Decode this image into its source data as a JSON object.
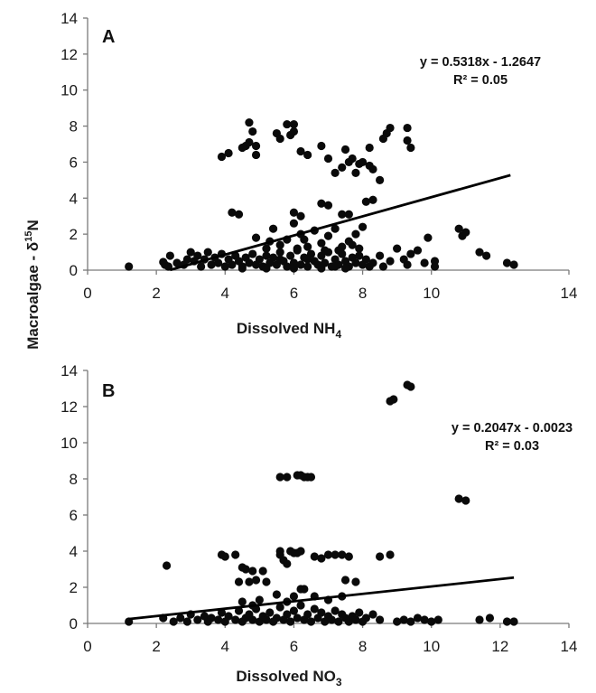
{
  "ylabel": "Macroalgae - δ",
  "ylabel_sup": "15",
  "ylabel_tail": "N",
  "chart_data": [
    {
      "type": "scatter",
      "panel_label": "A",
      "xlabel": "Dissolved NH",
      "xlabel_sub": "4",
      "xlim": [
        0,
        14
      ],
      "ylim": [
        0,
        14
      ],
      "xticks": [
        "0",
        "2",
        "4",
        "6",
        "8",
        "10",
        "14"
      ],
      "yticks": [
        "0",
        "2",
        "4",
        "6",
        "8",
        "10",
        "12",
        "14"
      ],
      "trendline": {
        "equation": "y = 0.5318x - 1.2647",
        "r2": "R² = 0.05",
        "slope": 0.5318,
        "intercept": -1.2647,
        "x_range": [
          2.4,
          12.3
        ]
      },
      "points": [
        [
          1.2,
          0.2
        ],
        [
          2.2,
          0.45
        ],
        [
          2.25,
          0.3
        ],
        [
          2.35,
          0.2
        ],
        [
          2.4,
          0.8
        ],
        [
          2.6,
          0.4
        ],
        [
          2.8,
          0.3
        ],
        [
          2.9,
          0.6
        ],
        [
          3.0,
          1.0
        ],
        [
          3.1,
          0.5
        ],
        [
          3.2,
          0.8
        ],
        [
          3.3,
          0.2
        ],
        [
          3.4,
          0.6
        ],
        [
          3.5,
          1.0
        ],
        [
          3.6,
          0.3
        ],
        [
          3.7,
          0.7
        ],
        [
          3.8,
          0.4
        ],
        [
          3.9,
          0.9
        ],
        [
          4.0,
          0.2
        ],
        [
          4.1,
          0.6
        ],
        [
          4.2,
          0.3
        ],
        [
          4.3,
          0.8
        ],
        [
          4.4,
          0.5
        ],
        [
          4.5,
          0.2
        ],
        [
          4.6,
          0.7
        ],
        [
          4.7,
          0.4
        ],
        [
          4.8,
          0.9
        ],
        [
          4.9,
          0.3
        ],
        [
          5.0,
          0.6
        ],
        [
          5.1,
          0.2
        ],
        [
          5.2,
          0.8
        ],
        [
          5.3,
          0.4
        ],
        [
          5.4,
          0.7
        ],
        [
          5.5,
          0.3
        ],
        [
          5.6,
          1.0
        ],
        [
          5.7,
          0.5
        ],
        [
          5.8,
          0.2
        ],
        [
          5.9,
          0.8
        ],
        [
          6.0,
          0.4
        ],
        [
          6.1,
          1.1
        ],
        [
          6.2,
          0.3
        ],
        [
          6.3,
          0.7
        ],
        [
          6.4,
          0.2
        ],
        [
          6.5,
          0.9
        ],
        [
          6.6,
          0.5
        ],
        [
          6.7,
          0.3
        ],
        [
          6.8,
          0.8
        ],
        [
          6.9,
          0.4
        ],
        [
          7.0,
          1.0
        ],
        [
          7.1,
          0.2
        ],
        [
          7.2,
          0.6
        ],
        [
          7.3,
          0.3
        ],
        [
          7.4,
          0.9
        ],
        [
          7.5,
          0.5
        ],
        [
          7.6,
          0.2
        ],
        [
          7.7,
          0.7
        ],
        [
          7.8,
          0.4
        ],
        [
          7.9,
          0.8
        ],
        [
          8.0,
          0.3
        ],
        [
          8.1,
          0.6
        ],
        [
          8.2,
          0.2
        ],
        [
          5.2,
          0.1
        ],
        [
          6.0,
          0.1
        ],
        [
          6.8,
          0.1
        ],
        [
          7.5,
          0.1
        ],
        [
          4.5,
          0.1
        ],
        [
          5.6,
          0.6
        ],
        [
          6.4,
          0.6
        ],
        [
          7.2,
          0.2
        ],
        [
          4.9,
          1.8
        ],
        [
          5.2,
          1.2
        ],
        [
          5.4,
          2.3
        ],
        [
          5.6,
          1.4
        ],
        [
          5.8,
          1.7
        ],
        [
          6.0,
          2.6
        ],
        [
          6.1,
          1.2
        ],
        [
          6.2,
          2.0
        ],
        [
          6.4,
          1.3
        ],
        [
          6.6,
          2.2
        ],
        [
          6.8,
          1.5
        ],
        [
          7.0,
          1.9
        ],
        [
          7.2,
          2.3
        ],
        [
          7.4,
          1.3
        ],
        [
          7.6,
          1.6
        ],
        [
          7.8,
          2.0
        ],
        [
          7.9,
          1.2
        ],
        [
          8.0,
          2.4
        ],
        [
          5.3,
          1.6
        ],
        [
          6.3,
          1.7
        ],
        [
          6.9,
          1.1
        ],
        [
          7.3,
          1.1
        ],
        [
          7.7,
          1.4
        ],
        [
          4.2,
          3.2
        ],
        [
          4.4,
          3.1
        ],
        [
          6.0,
          3.2
        ],
        [
          6.2,
          3.0
        ],
        [
          6.8,
          3.7
        ],
        [
          7.0,
          3.6
        ],
        [
          7.4,
          3.1
        ],
        [
          7.6,
          3.1
        ],
        [
          8.1,
          3.8
        ],
        [
          8.3,
          3.9
        ],
        [
          3.9,
          6.3
        ],
        [
          4.1,
          6.5
        ],
        [
          4.5,
          6.8
        ],
        [
          4.6,
          6.9
        ],
        [
          4.7,
          7.1
        ],
        [
          4.7,
          8.2
        ],
        [
          4.8,
          7.7
        ],
        [
          4.9,
          6.9
        ],
        [
          4.9,
          6.4
        ],
        [
          5.5,
          7.6
        ],
        [
          5.6,
          7.3
        ],
        [
          5.8,
          8.1
        ],
        [
          5.9,
          7.5
        ],
        [
          6.0,
          8.1
        ],
        [
          6.0,
          7.7
        ],
        [
          6.2,
          6.6
        ],
        [
          6.4,
          6.4
        ],
        [
          6.8,
          6.9
        ],
        [
          7.0,
          6.2
        ],
        [
          7.2,
          5.4
        ],
        [
          7.4,
          5.7
        ],
        [
          7.5,
          6.7
        ],
        [
          7.6,
          6.0
        ],
        [
          7.7,
          6.2
        ],
        [
          7.8,
          5.4
        ],
        [
          7.9,
          5.9
        ],
        [
          8.0,
          6.0
        ],
        [
          8.2,
          5.8
        ],
        [
          8.2,
          6.8
        ],
        [
          8.3,
          5.6
        ],
        [
          8.5,
          5.0
        ],
        [
          8.6,
          7.3
        ],
        [
          8.7,
          7.6
        ],
        [
          8.8,
          7.9
        ],
        [
          9.3,
          7.9
        ],
        [
          9.3,
          7.2
        ],
        [
          9.4,
          6.8
        ],
        [
          8.3,
          0.4
        ],
        [
          8.5,
          0.8
        ],
        [
          8.6,
          0.2
        ],
        [
          8.8,
          0.5
        ],
        [
          9.0,
          1.2
        ],
        [
          9.2,
          0.6
        ],
        [
          9.3,
          0.3
        ],
        [
          9.4,
          0.9
        ],
        [
          9.6,
          1.1
        ],
        [
          9.8,
          0.4
        ],
        [
          9.9,
          1.8
        ],
        [
          10.1,
          0.5
        ],
        [
          10.1,
          0.2
        ],
        [
          10.8,
          2.3
        ],
        [
          10.9,
          1.9
        ],
        [
          11.0,
          2.1
        ],
        [
          11.4,
          1.0
        ],
        [
          11.6,
          0.8
        ],
        [
          12.2,
          0.4
        ],
        [
          12.4,
          0.3
        ]
      ]
    },
    {
      "type": "scatter",
      "panel_label": "B",
      "xlabel": "Dissolved NO",
      "xlabel_sub": "3",
      "xlim": [
        0,
        14
      ],
      "ylim": [
        0,
        14
      ],
      "xticks": [
        "0",
        "2",
        "4",
        "6",
        "8",
        "10",
        "12",
        "14"
      ],
      "yticks": [
        "0",
        "2",
        "4",
        "6",
        "8",
        "10",
        "12",
        "14"
      ],
      "trendline": {
        "equation": "y = 0.2047x - 0.0023",
        "r2": "R² = 0.03",
        "slope": 0.2047,
        "intercept": -0.0023,
        "x_range": [
          1.2,
          12.4
        ]
      },
      "points": [
        [
          1.2,
          0.1
        ],
        [
          2.2,
          0.3
        ],
        [
          2.3,
          3.2
        ],
        [
          2.5,
          0.1
        ],
        [
          2.7,
          0.3
        ],
        [
          2.9,
          0.1
        ],
        [
          3.0,
          0.5
        ],
        [
          3.2,
          0.2
        ],
        [
          3.4,
          0.4
        ],
        [
          3.5,
          0.1
        ],
        [
          3.6,
          0.3
        ],
        [
          3.8,
          0.2
        ],
        [
          3.9,
          0.6
        ],
        [
          4.0,
          0.1
        ],
        [
          4.1,
          0.4
        ],
        [
          4.3,
          0.2
        ],
        [
          4.4,
          0.7
        ],
        [
          4.5,
          0.1
        ],
        [
          4.6,
          0.3
        ],
        [
          4.7,
          0.5
        ],
        [
          4.8,
          0.2
        ],
        [
          4.9,
          0.8
        ],
        [
          5.0,
          0.1
        ],
        [
          5.1,
          0.4
        ],
        [
          5.2,
          0.2
        ],
        [
          5.3,
          0.6
        ],
        [
          5.4,
          0.1
        ],
        [
          5.5,
          0.3
        ],
        [
          5.6,
          0.9
        ],
        [
          5.7,
          0.2
        ],
        [
          5.8,
          0.5
        ],
        [
          5.9,
          0.1
        ],
        [
          6.0,
          0.7
        ],
        [
          6.1,
          0.3
        ],
        [
          6.2,
          1.0
        ],
        [
          6.3,
          0.2
        ],
        [
          6.4,
          0.5
        ],
        [
          6.5,
          0.1
        ],
        [
          6.6,
          0.8
        ],
        [
          6.7,
          0.3
        ],
        [
          6.8,
          0.6
        ],
        [
          6.9,
          0.1
        ],
        [
          7.0,
          0.4
        ],
        [
          7.1,
          0.2
        ],
        [
          7.2,
          0.7
        ],
        [
          7.3,
          0.1
        ],
        [
          7.4,
          0.5
        ],
        [
          7.5,
          0.3
        ],
        [
          7.6,
          0.1
        ],
        [
          7.7,
          0.4
        ],
        [
          7.8,
          0.2
        ],
        [
          7.9,
          0.6
        ],
        [
          8.0,
          0.1
        ],
        [
          8.1,
          0.3
        ],
        [
          8.3,
          0.5
        ],
        [
          8.5,
          0.2
        ],
        [
          9.0,
          0.1
        ],
        [
          9.2,
          0.2
        ],
        [
          9.4,
          0.1
        ],
        [
          9.6,
          0.3
        ],
        [
          9.8,
          0.2
        ],
        [
          10.0,
          0.1
        ],
        [
          10.2,
          0.2
        ],
        [
          11.4,
          0.2
        ],
        [
          11.7,
          0.3
        ],
        [
          12.2,
          0.1
        ],
        [
          12.4,
          0.1
        ],
        [
          4.5,
          1.2
        ],
        [
          4.8,
          1.0
        ],
        [
          5.0,
          1.3
        ],
        [
          5.5,
          1.6
        ],
        [
          5.8,
          1.2
        ],
        [
          6.0,
          1.5
        ],
        [
          6.2,
          1.9
        ],
        [
          6.3,
          1.9
        ],
        [
          6.6,
          1.5
        ],
        [
          7.0,
          1.3
        ],
        [
          7.4,
          1.5
        ],
        [
          7.8,
          2.3
        ],
        [
          7.5,
          2.4
        ],
        [
          4.4,
          2.3
        ],
        [
          4.7,
          2.3
        ],
        [
          4.9,
          2.4
        ],
        [
          5.2,
          2.3
        ],
        [
          3.9,
          3.8
        ],
        [
          4.0,
          3.7
        ],
        [
          4.3,
          3.8
        ],
        [
          4.5,
          3.1
        ],
        [
          4.6,
          3.0
        ],
        [
          4.8,
          2.9
        ],
        [
          5.1,
          2.9
        ],
        [
          5.6,
          3.8
        ],
        [
          5.6,
          4.0
        ],
        [
          5.7,
          3.5
        ],
        [
          5.8,
          3.3
        ],
        [
          5.9,
          4.0
        ],
        [
          6.0,
          3.9
        ],
        [
          6.1,
          3.9
        ],
        [
          6.2,
          4.0
        ],
        [
          6.6,
          3.7
        ],
        [
          6.8,
          3.6
        ],
        [
          7.0,
          3.8
        ],
        [
          7.2,
          3.8
        ],
        [
          7.4,
          3.8
        ],
        [
          7.6,
          3.7
        ],
        [
          8.5,
          3.7
        ],
        [
          8.8,
          3.8
        ],
        [
          5.6,
          8.1
        ],
        [
          5.8,
          8.1
        ],
        [
          6.1,
          8.2
        ],
        [
          6.2,
          8.2
        ],
        [
          6.3,
          8.1
        ],
        [
          6.4,
          8.1
        ],
        [
          6.5,
          8.1
        ],
        [
          8.8,
          12.3
        ],
        [
          8.9,
          12.4
        ],
        [
          9.3,
          13.2
        ],
        [
          9.4,
          13.1
        ],
        [
          10.8,
          6.9
        ],
        [
          11.0,
          6.8
        ]
      ]
    }
  ]
}
